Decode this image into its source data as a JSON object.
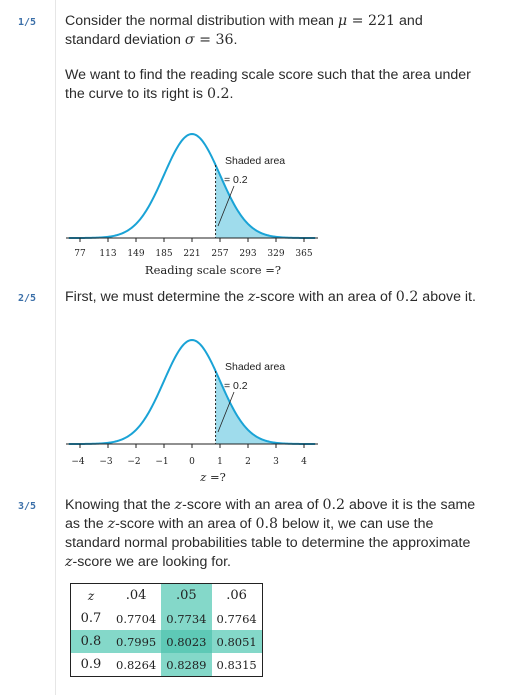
{
  "steps": [
    {
      "number": "1/5",
      "paragraphs": [
        {
          "before": "Consider the normal distribution with mean ",
          "sym": "μ",
          "mid": " = 221",
          "after": " and",
          "line2_before": "standard deviation ",
          "sym2": "σ",
          "mid2": " = 36",
          "end": "."
        },
        {
          "text1": "We want to find the reading scale score such that the area under",
          "text2_before": "the curve to its right is ",
          "val": "0.2",
          "end": "."
        }
      ],
      "figure": {
        "shaded_label_line1": "Shaded area",
        "shaded_label_line2": "= 0.2",
        "ticks": [
          "77",
          "113",
          "149",
          "185",
          "221",
          "257",
          "293",
          "329",
          "365"
        ],
        "xlabel": "Reading scale score =?"
      }
    },
    {
      "number": "2/5",
      "text_before": "First, we must determine the ",
      "sym": "z",
      "text_after": "-score with an area of ",
      "val": "0.2",
      "end": " above it.",
      "figure": {
        "shaded_label_line1": "Shaded area",
        "shaded_label_line2": "= 0.2",
        "ticks": [
          "−4",
          "−3",
          "−2",
          "−1",
          "0",
          "1",
          "2",
          "3",
          "4"
        ],
        "xlabel_sym": "z",
        "xlabel_rest": " =?"
      }
    },
    {
      "number": "3/5",
      "l1a": "Knowing that the ",
      "l1sym": "z",
      "l1b": "-score with an area of ",
      "l1val": "0.2",
      "l1c": " above it is the same",
      "l2a": "as the ",
      "l2sym": "z",
      "l2b": "-score with an area of ",
      "l2val": "0.8",
      "l2c": " below it, we can use the",
      "l3": "standard normal probabilities table to determine the approximate",
      "l4sym": "z",
      "l4rest": "-score we are looking for.",
      "table": {
        "corner": "z",
        "columns": [
          ".04",
          ".05",
          ".06"
        ],
        "rows": [
          {
            "z": "0.7",
            "values": [
              "0.7704",
              "0.7734",
              "0.7764"
            ]
          },
          {
            "z": "0.8",
            "values": [
              "0.7995",
              "0.8023",
              "0.8051"
            ]
          },
          {
            "z": "0.9",
            "values": [
              "0.8264",
              "0.8289",
              "0.8315"
            ]
          }
        ]
      }
    }
  ],
  "colors": {
    "curve": "#1aa3d6",
    "shade": "#9fdcec",
    "highlight_col": "#84d8c9",
    "highlight_cross": "#5ec9b6",
    "step_number": "#3b6fa8"
  }
}
